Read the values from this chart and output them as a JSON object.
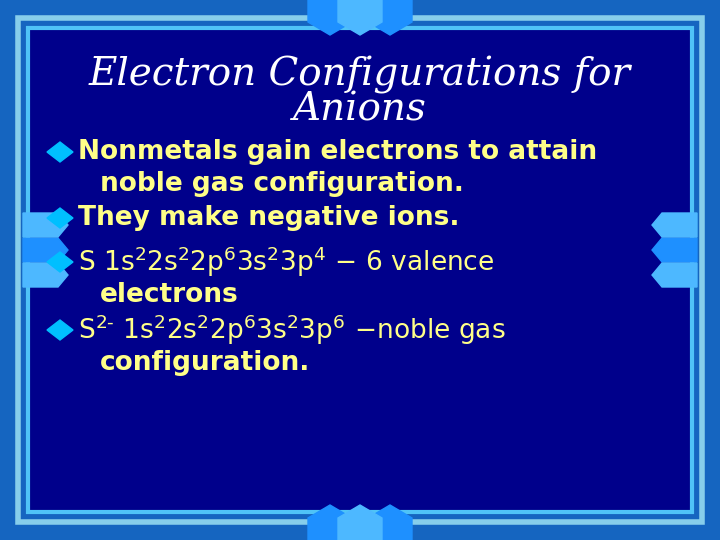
{
  "title_line1": "Electron Configurations for",
  "title_line2": "Anions",
  "title_color": "#FFFFFF",
  "title_fontsize": 28,
  "bullet_color": "#FFFF88",
  "bullet_fontsize": 19,
  "diamond_color": "#00BFFF",
  "bg_outer_top": "#1565C0",
  "bg_outer": "#1565C0",
  "bg_inner": "#00008B",
  "border_outer": "#4FC3F7",
  "border_inner": "#87CEEB",
  "bullet1_line1": "Nonmetals gain electrons to attain",
  "bullet1_line2": "noble gas configuration.",
  "bullet2": "They make negative ions.",
  "bullet3_line1": "S 1s²2s²2p⁶ - 6 valence",
  "bullet3_line2": "electrons",
  "bullet4_line2": "configuration.",
  "deco_color": "#1E90FF",
  "deco_light": "#87CEEB"
}
